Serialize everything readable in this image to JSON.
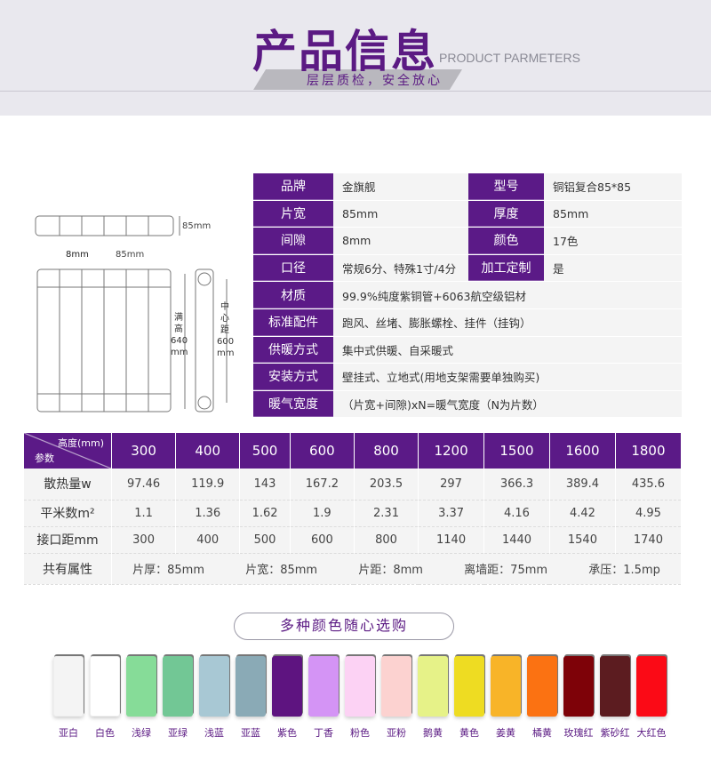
{
  "header": {
    "title": "产品信息",
    "subtitle_en": "PRODUCT PARMETERS",
    "slogan": "层层质检，安全放心"
  },
  "diagram": {
    "depth": "85mm",
    "gap": "8mm",
    "width": "85mm",
    "full_height": [
      "满",
      "高",
      "640",
      "mm"
    ],
    "center_distance": [
      "中",
      "心",
      "距",
      "600",
      "mm"
    ]
  },
  "specs": [
    {
      "label": "品牌",
      "value": "金旗舰",
      "label2": "型号",
      "value2": "铜铝复合85*85"
    },
    {
      "label": "片宽",
      "value": "85mm",
      "label2": "厚度",
      "value2": "85mm"
    },
    {
      "label": "间隙",
      "value": "8mm",
      "label2": "颜色",
      "value2": "17色"
    },
    {
      "label": "口径",
      "value": "常规6分、特殊1寸/4分",
      "label2": "加工定制",
      "value2": "是"
    },
    {
      "label": "材质",
      "value": "99.9%纯度紫铜管+6063航空级铝材"
    },
    {
      "label": "标准配件",
      "value": "跑风、丝堵、膨胀螺栓、挂件（挂钩）"
    },
    {
      "label": "供暖方式",
      "value": "集中式供暖、自采暖式"
    },
    {
      "label": "安装方式",
      "value": "壁挂式、立地式(用地支架需要单独购买)"
    },
    {
      "label": "暖气宽度",
      "value": "（片宽+间隙)xN=暖气宽度（N为片数）"
    }
  ],
  "params": {
    "corner_top": "高度(mm)",
    "corner_bottom": "参数",
    "heights": [
      "300",
      "400",
      "500",
      "600",
      "800",
      "1200",
      "1500",
      "1600",
      "1800"
    ],
    "rows": [
      {
        "label": "散热量w",
        "values": [
          "97.46",
          "119.9",
          "143",
          "167.2",
          "203.5",
          "297",
          "366.3",
          "389.4",
          "435.6"
        ]
      },
      {
        "label": "平米数m²",
        "values": [
          "1.1",
          "1.36",
          "1.62",
          "1.9",
          "2.31",
          "3.37",
          "4.16",
          "4.42",
          "4.95"
        ]
      },
      {
        "label": "接口距mm",
        "values": [
          "300",
          "400",
          "500",
          "600",
          "800",
          "1140",
          "1440",
          "1540",
          "1740"
        ]
      }
    ],
    "common_label": "共有属性",
    "common": [
      "片厚：85mm",
      "片宽：85mm",
      "片距：8mm",
      "离墙距：75mm",
      "承压：1.5mp"
    ]
  },
  "colors": {
    "title": "多种颜色随心选购",
    "items": [
      {
        "name": "亚白",
        "hex": "#f4f4f4"
      },
      {
        "name": "白色",
        "hex": "#ffffff"
      },
      {
        "name": "浅绿",
        "hex": "#86dc98"
      },
      {
        "name": "亚绿",
        "hex": "#72c795"
      },
      {
        "name": "浅蓝",
        "hex": "#a8c8d4"
      },
      {
        "name": "亚蓝",
        "hex": "#8aaab6"
      },
      {
        "name": "紫色",
        "hex": "#5e1480"
      },
      {
        "name": "丁香",
        "hex": "#d494f5"
      },
      {
        "name": "粉色",
        "hex": "#fcd2f4"
      },
      {
        "name": "亚粉",
        "hex": "#fcd2d0"
      },
      {
        "name": "鹅黄",
        "hex": "#e6f288"
      },
      {
        "name": "黄色",
        "hex": "#eedc22"
      },
      {
        "name": "姜黄",
        "hex": "#f8b428"
      },
      {
        "name": "橘黄",
        "hex": "#fb7212"
      },
      {
        "name": "玫瑰红",
        "hex": "#7e0208"
      },
      {
        "name": "紫砂红",
        "hex": "#5c1c20"
      },
      {
        "name": "大红色",
        "hex": "#fb0a16"
      }
    ]
  }
}
